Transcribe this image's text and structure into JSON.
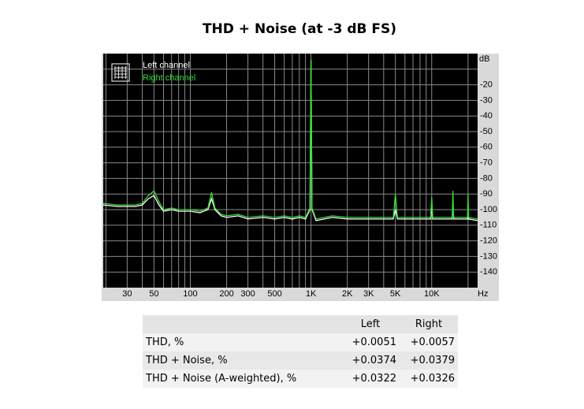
{
  "chart_data": {
    "type": "line",
    "title": "THD + Noise (at -3 dB FS)",
    "x_unit": "Hz",
    "y_unit": "dB",
    "log_x": true,
    "xlim": [
      19,
      24000
    ],
    "ylim": [
      -150,
      0
    ],
    "xticks": [
      30,
      50,
      100,
      200,
      300,
      500,
      {
        "value": 1000,
        "label": "1K"
      },
      {
        "value": 2000,
        "label": "2K"
      },
      {
        "value": 3000,
        "label": "3K"
      },
      {
        "value": 5000,
        "label": "5K"
      },
      {
        "value": 10000,
        "label": "10K"
      }
    ],
    "xgrid": [
      20,
      30,
      40,
      50,
      60,
      70,
      80,
      90,
      100,
      200,
      300,
      400,
      500,
      600,
      700,
      800,
      900,
      1000,
      2000,
      3000,
      4000,
      5000,
      6000,
      7000,
      8000,
      9000,
      10000,
      20000
    ],
    "yticks": [
      -20,
      -30,
      -40,
      -50,
      -60,
      -70,
      -80,
      -90,
      -100,
      -110,
      -120,
      -130,
      -140
    ],
    "ygrid": [
      -10,
      -20,
      -30,
      -40,
      -50,
      -60,
      -70,
      -80,
      -90,
      -100,
      -110,
      -120,
      -130,
      -140
    ],
    "grid": true,
    "background": "#000000",
    "legend": "top-left",
    "x": [
      19,
      25,
      30,
      35,
      40,
      45,
      50,
      55,
      60,
      70,
      80,
      100,
      120,
      140,
      150,
      160,
      180,
      200,
      250,
      300,
      400,
      500,
      600,
      700,
      800,
      900,
      980,
      1000,
      1020,
      1100,
      1500,
      2000,
      3000,
      4000,
      4800,
      5000,
      5200,
      7000,
      9000,
      9800,
      10000,
      10200,
      12000,
      14000,
      14800,
      15000,
      15200,
      18000,
      19800,
      20000,
      20200,
      24000
    ],
    "series": [
      {
        "name": "Left channel",
        "color": "#ffffff",
        "values": [
          -97,
          -98,
          -98,
          -98,
          -97,
          -93,
          -91,
          -97,
          -101,
          -100,
          -101,
          -101,
          -102,
          -100,
          -93,
          -100,
          -104,
          -105,
          -104,
          -106,
          -105,
          -106,
          -105,
          -106,
          -105,
          -106,
          -100,
          -4,
          -100,
          -107,
          -105,
          -106,
          -106,
          -106,
          -106,
          -100,
          -106,
          -106,
          -106,
          -106,
          -98,
          -106,
          -106,
          -106,
          -106,
          -95,
          -106,
          -106,
          -106,
          -97,
          -106,
          -107
        ]
      },
      {
        "name": "Right channel",
        "color": "#33dd33",
        "values": [
          -96,
          -97,
          -97,
          -97,
          -96,
          -91,
          -88,
          -95,
          -100,
          -99,
          -100,
          -100,
          -101,
          -99,
          -89,
          -99,
          -103,
          -104,
          -103,
          -105,
          -104,
          -105,
          -104,
          -105,
          -104,
          -105,
          -99,
          -4,
          -99,
          -106,
          -104,
          -105,
          -105,
          -105,
          -105,
          -90,
          -105,
          -105,
          -105,
          -105,
          -92,
          -105,
          -105,
          -105,
          -105,
          -88,
          -105,
          -105,
          -105,
          -90,
          -105,
          -106
        ]
      }
    ]
  },
  "table": {
    "columns": [
      "Left",
      "Right"
    ],
    "rows": [
      [
        "THD, %",
        "+0.0051",
        "+0.0057"
      ],
      [
        "THD + Noise, %",
        "+0.0374",
        "+0.0379"
      ],
      [
        "THD + Noise (A-weighted), %",
        "+0.0322",
        "+0.0326"
      ]
    ]
  }
}
